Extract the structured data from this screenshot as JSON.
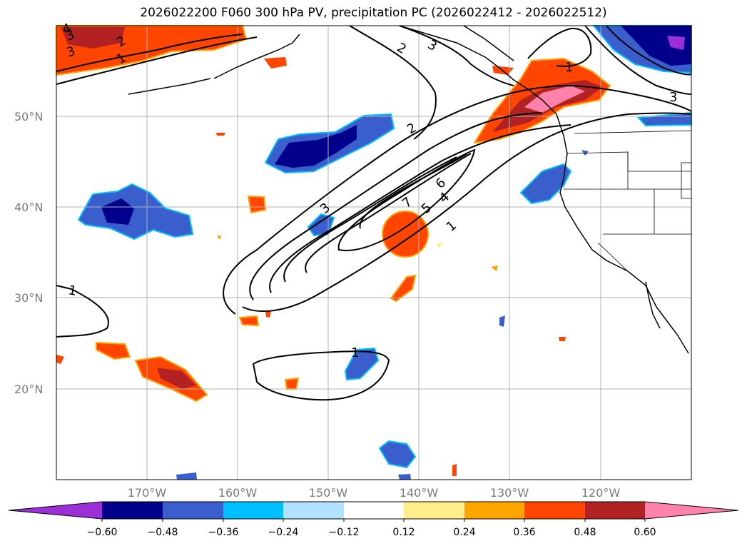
{
  "title": "2026022200 F060 300 hPa PV, precipitation PC (2026022412 - 2026022512)",
  "map": {
    "lon_range": [
      -180,
      -110
    ],
    "lat_range": [
      10,
      60
    ],
    "lat_labels": [
      "20°N",
      "30°N",
      "40°N",
      "50°N"
    ],
    "lon_labels": [
      "170°W",
      "160°W",
      "150°W",
      "140°W",
      "130°W",
      "120°W"
    ],
    "grid": true,
    "contour_labels": [
      "1",
      "2",
      "3",
      "4",
      "5",
      "6",
      "7",
      "1",
      "3",
      "1",
      "1",
      "2",
      "3",
      "1",
      "3",
      "2",
      "3",
      "4"
    ]
  },
  "colorbar": {
    "ticks": [
      "−0.60",
      "−0.48",
      "−0.36",
      "−0.24",
      "−0.12",
      "0.12",
      "0.24",
      "0.36",
      "0.48",
      "0.60"
    ],
    "colors": [
      "#9b30d9",
      "#00008b",
      "#3a5fcd",
      "#00bfff",
      "#b0e2ff",
      "#ffffff",
      "#ffec8b",
      "#ffa500",
      "#ff4500",
      "#b22222",
      "#ff82ab"
    ]
  }
}
